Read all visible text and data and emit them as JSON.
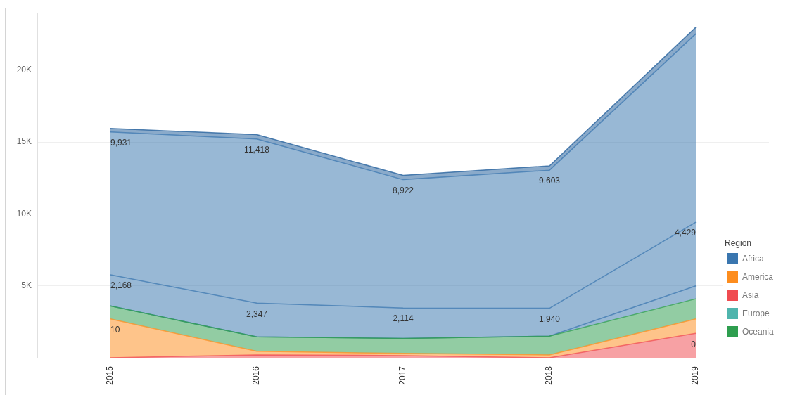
{
  "chart_data": {
    "type": "area",
    "categories": [
      "2015",
      "2016",
      "2017",
      "2018",
      "2019"
    ],
    "stacked": true,
    "ylim": [
      0,
      24000
    ],
    "yticks": [
      {
        "value": 5000,
        "label": "5K"
      },
      {
        "value": 10000,
        "label": "10K"
      },
      {
        "value": 15000,
        "label": "15K"
      },
      {
        "value": 20000,
        "label": "20K"
      }
    ],
    "grid": "y",
    "legend": "right",
    "legend_title": "Region",
    "marker": "none",
    "series": [
      {
        "name": "Asia",
        "color": "#f04b50",
        "values": [
          0,
          200,
          150,
          0,
          1700
        ]
      },
      {
        "name": "America",
        "color": "#fd8d1e",
        "values": [
          2700,
          250,
          150,
          200,
          1000
        ]
      },
      {
        "name": "Oceania",
        "color": "#2e9e4f",
        "values": [
          900,
          1000,
          1050,
          1300,
          1400
        ]
      },
      {
        "color": "#3a76af",
        "values": [
          0,
          0,
          0,
          0,
          900
        ]
      },
      {
        "color": "#3a76af",
        "values": [
          2168,
          2347,
          2114,
          1940,
          4429
        ],
        "value_labels": [
          "2,168",
          "2,347",
          "2,114",
          "1,940",
          "4,429"
        ]
      },
      {
        "name": "Africa",
        "color": "#3a76af",
        "values": [
          9931,
          11418,
          8922,
          9603,
          13100
        ],
        "value_labels": [
          "9,931",
          "11,418",
          "8,922",
          "9,603",
          null
        ]
      },
      {
        "color": "#1f5c99",
        "values": [
          250,
          300,
          300,
          300,
          450
        ]
      },
      {
        "name": "Europe",
        "color": "#4fb5ad",
        "values": [
          null,
          null,
          null,
          null,
          null
        ]
      }
    ],
    "annotations": [
      {
        "text": "10",
        "x": "2015",
        "y": 2700
      },
      {
        "text": "0",
        "x": "2019",
        "y": 1700
      }
    ]
  }
}
